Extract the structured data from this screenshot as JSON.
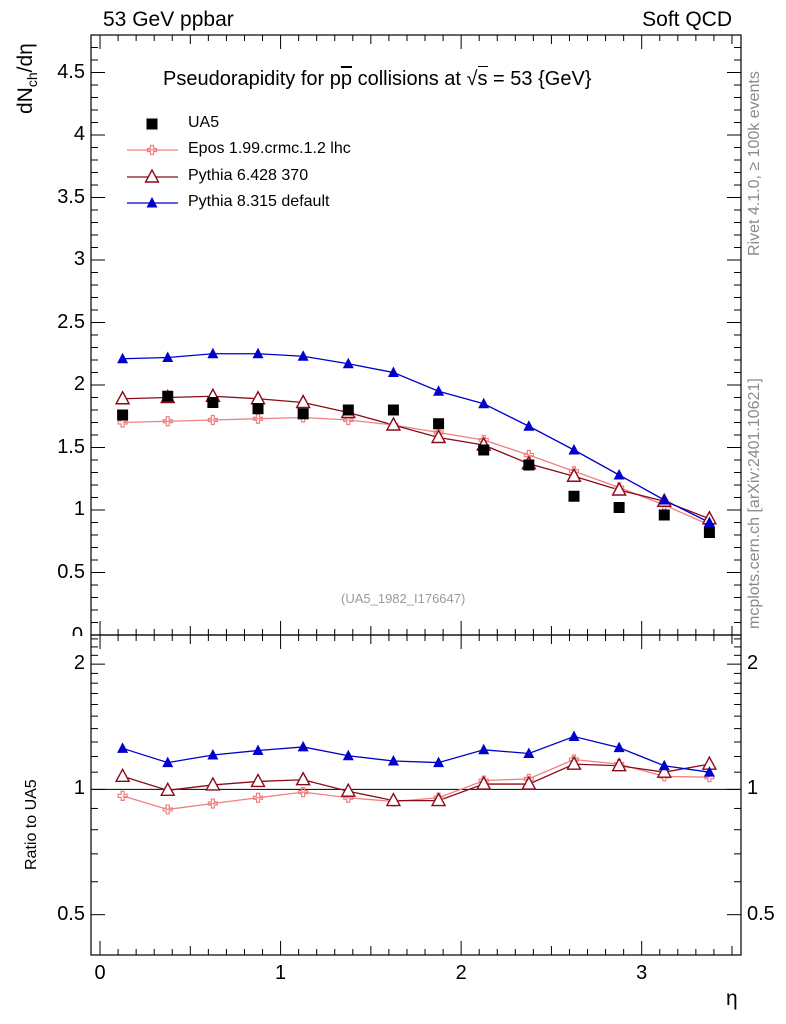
{
  "header": {
    "left": "53 GeV ppbar",
    "right": "Soft QCD"
  },
  "side_labels": {
    "top": "Rivet 4.1.0, ≥ 100k events",
    "bottom": "mcplots.cern.ch [arXiv:2401.10621]"
  },
  "title": {
    "pre": "Pseudorapidity for p",
    "pbar": "p",
    "mid": " collisions at ",
    "root": "s",
    "post": " = 53 {GeV}"
  },
  "reference": "(UA5_1982_I176647)",
  "axes": {
    "main_ylabel_main": "dN",
    "main_ylabel_sub": "ch",
    "main_ylabel_rest": "/dη",
    "ratio_ylabel": "Ratio to UA5",
    "xlabel": "η",
    "main_yticks": [
      "0.5",
      "1",
      "1.5",
      "2",
      "2.5",
      "3",
      "3.5",
      "4",
      "4.5"
    ],
    "main_ytick_zero": "0",
    "ratio_yticks": [
      "0.5",
      "1",
      "2"
    ],
    "xticks": [
      "0",
      "1",
      "2",
      "3"
    ]
  },
  "colors": {
    "data": "#000000",
    "epos": "#f08080",
    "p6": "#8b0a1a",
    "p8": "#0000cc"
  },
  "chart_data": {
    "type": "scatter",
    "title": "Pseudorapidity for pp̅ collisions at √s = 53 {GeV}",
    "xlabel": "η",
    "ylabel": "dNch/dη",
    "xlim": [
      -0.05,
      3.55
    ],
    "ylim": [
      0,
      4.8
    ],
    "ratio_ylabel": "Ratio to UA5",
    "ratio_ylim": [
      0.4,
      2.35
    ],
    "ratio_scale": "log",
    "x": [
      0.125,
      0.375,
      0.625,
      0.875,
      1.125,
      1.375,
      1.625,
      1.875,
      2.125,
      2.375,
      2.625,
      2.875,
      3.125,
      3.375
    ],
    "series": [
      {
        "name": "UA5",
        "key": "data",
        "marker": "square",
        "values": [
          1.76,
          1.91,
          1.86,
          1.81,
          1.77,
          1.8,
          1.8,
          1.69,
          1.48,
          1.36,
          1.11,
          1.02,
          0.96,
          0.82
        ]
      },
      {
        "name": "Epos 1.99.crmc.1.2 lhc",
        "key": "epos",
        "marker": "cross",
        "values": [
          1.7,
          1.71,
          1.72,
          1.73,
          1.74,
          1.72,
          1.68,
          1.62,
          1.56,
          1.44,
          1.31,
          1.18,
          1.04,
          0.88
        ],
        "ratio": [
          0.965,
          0.895,
          0.925,
          0.955,
          0.985,
          0.955,
          0.935,
          0.955,
          1.05,
          1.06,
          1.18,
          1.15,
          1.075,
          1.07
        ]
      },
      {
        "name": "Pythia 6.428 370",
        "key": "p6",
        "marker": "triangle-open",
        "values": [
          1.89,
          1.9,
          1.91,
          1.89,
          1.86,
          1.78,
          1.68,
          1.58,
          1.52,
          1.37,
          1.27,
          1.16,
          1.07,
          0.93
        ],
        "ratio": [
          1.075,
          0.995,
          1.025,
          1.045,
          1.055,
          0.99,
          0.94,
          0.94,
          1.03,
          1.03,
          1.15,
          1.14,
          1.1,
          1.15
        ]
      },
      {
        "name": "Pythia 8.315 default",
        "key": "p8",
        "marker": "triangle-filled",
        "values": [
          2.21,
          2.22,
          2.25,
          2.25,
          2.23,
          2.17,
          2.1,
          1.95,
          1.85,
          1.67,
          1.48,
          1.28,
          1.08,
          0.9
        ],
        "ratio": [
          1.255,
          1.16,
          1.21,
          1.24,
          1.265,
          1.205,
          1.17,
          1.16,
          1.245,
          1.22,
          1.34,
          1.26,
          1.14,
          1.1
        ]
      }
    ]
  }
}
